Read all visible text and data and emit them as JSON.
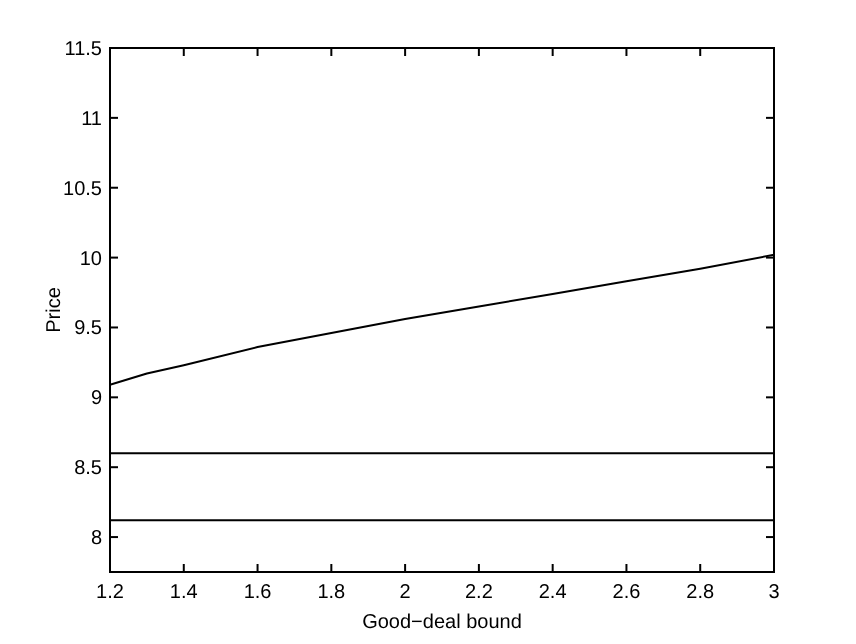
{
  "chart_data": {
    "type": "line",
    "xlabel": "Good−deal bound",
    "ylabel": "Price",
    "xlim": [
      1.2,
      3
    ],
    "ylim": [
      7.75,
      11.5
    ],
    "xticks": [
      1.2,
      1.4,
      1.6,
      1.8,
      2,
      2.2,
      2.4,
      2.6,
      2.8,
      3
    ],
    "yticks": [
      8,
      8.5,
      9,
      9.5,
      10,
      10.5,
      11,
      11.5
    ],
    "grid": false,
    "marker": "none",
    "line_style": "solid",
    "series": [
      {
        "color": "#000000",
        "x": [
          1.2,
          1.3,
          1.4,
          1.6,
          1.8,
          2,
          2.2,
          2.4,
          2.6,
          2.8,
          3
        ],
        "values": [
          9.09,
          9.17,
          9.23,
          9.36,
          9.46,
          9.56,
          9.65,
          9.74,
          9.83,
          9.92,
          10.02
        ]
      },
      {
        "color": "#000000",
        "x": [
          1.2,
          3
        ],
        "values": [
          8.6,
          8.6
        ]
      },
      {
        "color": "#000000",
        "x": [
          1.2,
          3
        ],
        "values": [
          8.12,
          8.12
        ]
      }
    ]
  }
}
